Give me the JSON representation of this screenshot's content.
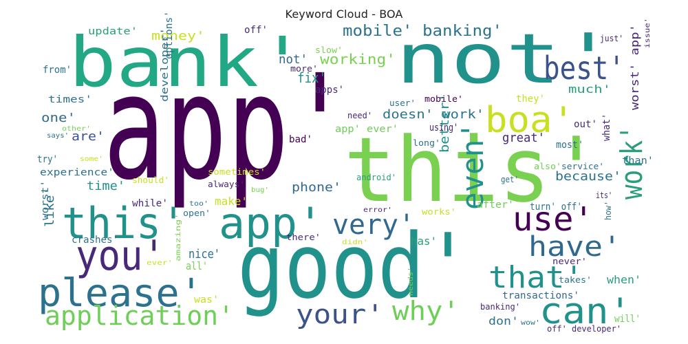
{
  "chart_data": {
    "type": "wordcloud",
    "title": "Keyword Cloud - BOA",
    "words": [
      {
        "text": "app'",
        "color": "#440154"
      },
      {
        "text": "good'",
        "color": "#21918c"
      },
      {
        "text": "this'",
        "color": "#7ad151"
      },
      {
        "text": "not'",
        "color": "#21918c"
      },
      {
        "text": "bank'",
        "color": "#22a884"
      },
      {
        "text": "app'",
        "color": "#21918c"
      },
      {
        "text": "this'",
        "color": "#21918c"
      },
      {
        "text": "please'",
        "color": "#2c728e"
      },
      {
        "text": "you'",
        "color": "#482878"
      },
      {
        "text": "application'",
        "color": "#6ece58"
      },
      {
        "text": "best'",
        "color": "#3b528b"
      },
      {
        "text": "can'",
        "color": "#21918c"
      },
      {
        "text": "boa'",
        "color": "#c8e020"
      },
      {
        "text": "use'",
        "color": "#440154"
      },
      {
        "text": "have'",
        "color": "#31688e"
      },
      {
        "text": "very'",
        "color": "#31688e"
      },
      {
        "text": "that'",
        "color": "#21918c"
      },
      {
        "text": "work'",
        "color": "#2a9d7c"
      },
      {
        "text": "even'",
        "color": "#21918c"
      },
      {
        "text": "your'",
        "color": "#3b528b"
      },
      {
        "text": "why'",
        "color": "#6ece58"
      },
      {
        "text": "mobile' banking'",
        "color": "#2c728e"
      },
      {
        "text": "working'",
        "color": "#7ad151"
      },
      {
        "text": "money'",
        "color": "#c8e020"
      },
      {
        "text": "fix'",
        "color": "#21918c"
      },
      {
        "text": "not'",
        "color": "#31688e"
      },
      {
        "text": "doesn' work'",
        "color": "#2c728e"
      },
      {
        "text": "much'",
        "color": "#2a9d7c"
      },
      {
        "text": "worst' app'",
        "color": "#482878"
      },
      {
        "text": "because'",
        "color": "#2c728e"
      },
      {
        "text": "phone'",
        "color": "#31688e"
      },
      {
        "text": "better'",
        "color": "#21918c"
      },
      {
        "text": "great'",
        "color": "#482878"
      },
      {
        "text": "experience'",
        "color": "#2c728e"
      },
      {
        "text": "time'",
        "color": "#21918c"
      },
      {
        "text": "times'",
        "color": "#2c728e"
      },
      {
        "text": "one'",
        "color": "#31688e"
      },
      {
        "text": "are'",
        "color": "#3b528b"
      },
      {
        "text": "update'",
        "color": "#2a9d7c"
      },
      {
        "text": "from'",
        "color": "#2c728e"
      },
      {
        "text": "slow'",
        "color": "#7ad151"
      },
      {
        "text": "apps'",
        "color": "#482878"
      },
      {
        "text": "more'",
        "color": "#482878"
      },
      {
        "text": "off'",
        "color": "#482878"
      },
      {
        "text": "just'",
        "color": "#482878"
      },
      {
        "text": "issue'",
        "color": "#482878"
      },
      {
        "text": "options'",
        "color": "#2c728e"
      },
      {
        "text": "developer'",
        "color": "#2c728e"
      },
      {
        "text": "nice'",
        "color": "#2c728e"
      },
      {
        "text": "all'",
        "color": "#7ad151"
      },
      {
        "text": "make'",
        "color": "#c8e020"
      },
      {
        "text": "like'",
        "color": "#2c728e"
      },
      {
        "text": "when'",
        "color": "#2a9d7c"
      },
      {
        "text": "has'",
        "color": "#2a9d7c"
      },
      {
        "text": "was'",
        "color": "#c8e020"
      },
      {
        "text": "don'",
        "color": "#2c728e"
      },
      {
        "text": "will'",
        "color": "#6ece58"
      },
      {
        "text": "transactions'",
        "color": "#31688e"
      },
      {
        "text": "off' developer'",
        "color": "#482878"
      },
      {
        "text": "mobile'",
        "color": "#440154"
      },
      {
        "text": "user'",
        "color": "#2c728e"
      },
      {
        "text": "they'",
        "color": "#c8e020"
      },
      {
        "text": "need'",
        "color": "#482878"
      },
      {
        "text": "using'",
        "color": "#482878"
      },
      {
        "text": "app' ever'",
        "color": "#6ece58"
      },
      {
        "text": "bad'",
        "color": "#440154"
      },
      {
        "text": "long'",
        "color": "#2c728e"
      },
      {
        "text": "most'",
        "color": "#2c728e"
      },
      {
        "text": "out'",
        "color": "#482878"
      },
      {
        "text": "what'",
        "color": "#482878"
      },
      {
        "text": "also'",
        "color": "#6ece58"
      },
      {
        "text": "service'",
        "color": "#2c728e"
      },
      {
        "text": "than'",
        "color": "#2c728e"
      },
      {
        "text": "get'",
        "color": "#2c728e"
      },
      {
        "text": "its'",
        "color": "#482878"
      },
      {
        "text": "how'",
        "color": "#2c728e"
      },
      {
        "text": "after'",
        "color": "#6ece58"
      },
      {
        "text": "turn' off'",
        "color": "#2c728e"
      },
      {
        "text": "error'",
        "color": "#482878"
      },
      {
        "text": "works'",
        "color": "#c8e020"
      },
      {
        "text": "android'",
        "color": "#2a9d7c"
      },
      {
        "text": "sometimes'",
        "color": "#c8e020"
      },
      {
        "text": "always'",
        "color": "#482878"
      },
      {
        "text": "bug'",
        "color": "#7ad151"
      },
      {
        "text": "should'",
        "color": "#c8e020"
      },
      {
        "text": "while'",
        "color": "#482878"
      },
      {
        "text": "too'",
        "color": "#2c728e"
      },
      {
        "text": "open'",
        "color": "#2c728e"
      },
      {
        "text": "crashes'",
        "color": "#2c728e"
      },
      {
        "text": "there'",
        "color": "#482878"
      },
      {
        "text": "didn'",
        "color": "#c8e020"
      },
      {
        "text": "amazing'",
        "color": "#7ad151"
      },
      {
        "text": "ever'",
        "color": "#c8e020"
      },
      {
        "text": "never'",
        "color": "#482878"
      },
      {
        "text": "takes'",
        "color": "#2c728e"
      },
      {
        "text": "banking'",
        "color": "#482878"
      },
      {
        "text": "wow'",
        "color": "#2c728e"
      },
      {
        "text": "needs'",
        "color": "#6ece58"
      },
      {
        "text": "other'",
        "color": "#7ad151"
      },
      {
        "text": "says'",
        "color": "#2c728e"
      },
      {
        "text": "some'",
        "color": "#c8e020"
      },
      {
        "text": "try'",
        "color": "#2c728e"
      },
      {
        "text": "worst'",
        "color": "#2c728e"
      }
    ]
  }
}
